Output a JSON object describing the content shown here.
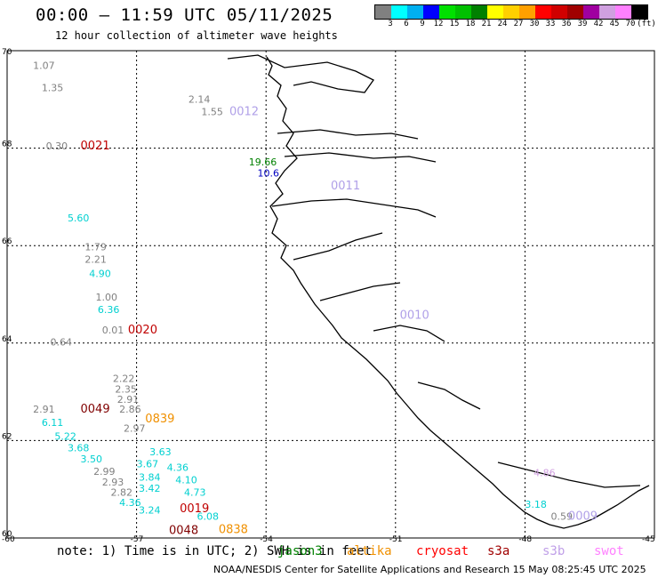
{
  "header": {
    "title": "00:00 – 11:59 UTC 05/11/2025",
    "subtitle": "12 hour collection of altimeter wave heights"
  },
  "colorbar": {
    "unit": "(ft)",
    "colors": [
      "#808080",
      "#00ffff",
      "#00b0f0",
      "#0000ff",
      "#00e000",
      "#00c000",
      "#008000",
      "#ffff00",
      "#ffd000",
      "#ffa000",
      "#ff0000",
      "#d00000",
      "#a00000",
      "#a000a0",
      "#d0a0e0",
      "#ff80ff",
      "#000000"
    ],
    "labels": [
      "3",
      "6",
      "9",
      "12",
      "15",
      "18",
      "21",
      "24",
      "27",
      "30",
      "33",
      "36",
      "39",
      "42",
      "45",
      "70"
    ]
  },
  "axes": {
    "lat_labels": [
      "70",
      "68",
      "66",
      "64",
      "62",
      "60"
    ],
    "lon_labels": [
      "-60",
      "-57",
      "-54",
      "-51",
      "-48",
      "-45"
    ]
  },
  "observations": [
    {
      "text": "1.07",
      "x": -59.4,
      "y": 69.63,
      "color": "#808080"
    },
    {
      "text": "1.35",
      "x": -59.2,
      "y": 69.17,
      "color": "#808080"
    },
    {
      "text": "2.14",
      "x": -55.8,
      "y": 68.93,
      "color": "#808080"
    },
    {
      "text": "1.55",
      "x": -55.5,
      "y": 68.68,
      "color": "#808080"
    },
    {
      "text": "0.30",
      "x": -59.1,
      "y": 67.97,
      "color": "#808080"
    },
    {
      "text": "5.60",
      "x": -58.6,
      "y": 66.5,
      "color": "#00d0d0"
    },
    {
      "text": "1.79",
      "x": -58.2,
      "y": 65.9,
      "color": "#808080"
    },
    {
      "text": "2.21",
      "x": -58.2,
      "y": 65.65,
      "color": "#808080"
    },
    {
      "text": "4.90",
      "x": -58.1,
      "y": 65.36,
      "color": "#00d0d0"
    },
    {
      "text": "1.00",
      "x": -57.95,
      "y": 64.87,
      "color": "#808080"
    },
    {
      "text": "6.36",
      "x": -57.9,
      "y": 64.62,
      "color": "#00d0d0"
    },
    {
      "text": "0.01",
      "x": -57.8,
      "y": 64.2,
      "color": "#808080"
    },
    {
      "text": "0.64",
      "x": -59.0,
      "y": 63.95,
      "color": "#808080"
    },
    {
      "text": "2.22",
      "x": -57.55,
      "y": 63.2,
      "color": "#808080"
    },
    {
      "text": "2.35",
      "x": -57.5,
      "y": 62.98,
      "color": "#808080"
    },
    {
      "text": "2.91",
      "x": -57.45,
      "y": 62.77,
      "color": "#808080"
    },
    {
      "text": "2.91",
      "x": -59.4,
      "y": 62.57,
      "color": "#808080"
    },
    {
      "text": "2.86",
      "x": -57.4,
      "y": 62.57,
      "color": "#808080"
    },
    {
      "text": "6.11",
      "x": -59.2,
      "y": 62.3,
      "color": "#00d0d0"
    },
    {
      "text": "2.97",
      "x": -57.3,
      "y": 62.18,
      "color": "#808080"
    },
    {
      "text": "5.22",
      "x": -58.9,
      "y": 62.02,
      "color": "#00d0d0"
    },
    {
      "text": "3.68",
      "x": -58.6,
      "y": 61.78,
      "color": "#00d0d0"
    },
    {
      "text": "3.50",
      "x": -58.3,
      "y": 61.55,
      "color": "#00d0d0"
    },
    {
      "text": "2.99",
      "x": -58.0,
      "y": 61.3,
      "color": "#808080"
    },
    {
      "text": "2.93",
      "x": -57.8,
      "y": 61.08,
      "color": "#808080"
    },
    {
      "text": "2.82",
      "x": -57.6,
      "y": 60.87,
      "color": "#808080"
    },
    {
      "text": "4.36",
      "x": -57.4,
      "y": 60.66,
      "color": "#00d0d0"
    },
    {
      "text": "3.42",
      "x": -56.95,
      "y": 60.95,
      "color": "#00d0d0"
    },
    {
      "text": "3.24",
      "x": -56.95,
      "y": 60.5,
      "color": "#00d0d0"
    },
    {
      "text": "3.84",
      "x": -56.95,
      "y": 61.18,
      "color": "#00d0d0"
    },
    {
      "text": "3.67",
      "x": -57.0,
      "y": 61.45,
      "color": "#00d0d0"
    },
    {
      "text": "3.63",
      "x": -56.7,
      "y": 61.7,
      "color": "#00d0d0"
    },
    {
      "text": "4.36",
      "x": -56.3,
      "y": 61.38,
      "color": "#00d0d0"
    },
    {
      "text": "4.10",
      "x": -56.1,
      "y": 61.12,
      "color": "#00d0d0"
    },
    {
      "text": "4.73",
      "x": -55.9,
      "y": 60.87,
      "color": "#00d0d0"
    },
    {
      "text": "6.08",
      "x": -55.6,
      "y": 60.37,
      "color": "#00d0d0"
    },
    {
      "text": "3.18",
      "x": -48.0,
      "y": 60.62,
      "color": "#00d0d0"
    },
    {
      "text": "0.59",
      "x": -47.4,
      "y": 60.37,
      "color": "#808080"
    },
    {
      "text": "19.66",
      "x": -54.4,
      "y": 67.65,
      "color": "#008000"
    },
    {
      "text": "10.6",
      "x": -54.2,
      "y": 67.42,
      "color": "#0000c0"
    },
    {
      "text": "4.86",
      "x": -47.8,
      "y": 61.27,
      "color": "#d0a0e0"
    }
  ],
  "passes": [
    {
      "text": "0012",
      "x": -54.85,
      "y": 68.68,
      "color": "#b0a0e8"
    },
    {
      "text": "0021",
      "x": -58.3,
      "y": 67.97,
      "color": "#c00000"
    },
    {
      "text": "0011",
      "x": -52.5,
      "y": 67.15,
      "color": "#b0a0e8"
    },
    {
      "text": "0020",
      "x": -57.2,
      "y": 64.2,
      "color": "#c00000"
    },
    {
      "text": "0010",
      "x": -50.9,
      "y": 64.5,
      "color": "#b0a0e8"
    },
    {
      "text": "0049",
      "x": -58.3,
      "y": 62.57,
      "color": "#800000"
    },
    {
      "text": "0839",
      "x": -56.8,
      "y": 62.37,
      "color": "#f09000"
    },
    {
      "text": "0019",
      "x": -56.0,
      "y": 60.53,
      "color": "#c00000"
    },
    {
      "text": "0048",
      "x": -56.25,
      "y": 60.08,
      "color": "#800000"
    },
    {
      "text": "0838",
      "x": -55.1,
      "y": 60.1,
      "color": "#f09000"
    },
    {
      "text": "0009",
      "x": -47.0,
      "y": 60.37,
      "color": "#b0a0e8"
    }
  ],
  "footer": {
    "note": "note: 1) Time is in UTC; 2) SWH is in feet",
    "satellites": [
      {
        "name": "jason3",
        "color": "#008000"
      },
      {
        "name": "altika",
        "color": "#f09000"
      },
      {
        "name": "cryosat",
        "color": "#ff0000"
      },
      {
        "name": "s3a",
        "color": "#a00000"
      },
      {
        "name": "s3b",
        "color": "#c0a0e8"
      },
      {
        "name": "swot",
        "color": "#ff80ff"
      }
    ],
    "credit": "NOAA/NESDIS Center for Satellite Applications and Research    15 May 08:25:45 UTC 2025"
  }
}
